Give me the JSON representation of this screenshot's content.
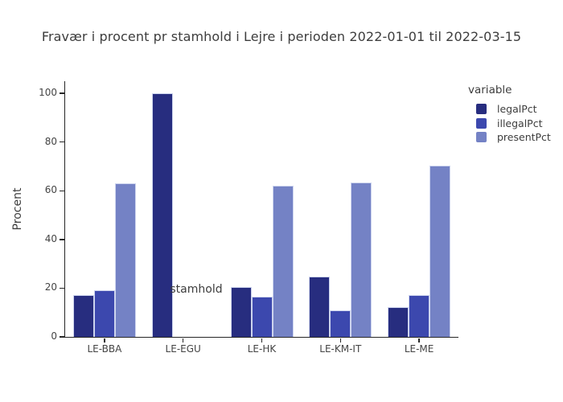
{
  "title": "Fravær i procent pr stamhold i Lejre i perioden 2022-01-01 til 2022-03-15",
  "chart_data": {
    "type": "bar",
    "categories": [
      "LE-BBA",
      "LE-EGU",
      "LE-HK",
      "LE-KM-IT",
      "LE-ME"
    ],
    "series": [
      {
        "name": "legalPct",
        "color": "#272d7f",
        "values": [
          17.3,
          100,
          20.6,
          24.8,
          12.1
        ]
      },
      {
        "name": "illegalPct",
        "color": "#3c48ae",
        "values": [
          19.0,
          0,
          16.5,
          11.0,
          17.1
        ]
      },
      {
        "name": "presentPct",
        "color": "#7482c5",
        "values": [
          63.1,
          0,
          62.0,
          63.3,
          70.2
        ]
      }
    ],
    "xlabel": "stamhold",
    "ylabel": "Procent",
    "yticks": [
      0,
      20,
      40,
      60,
      80,
      100
    ],
    "ylim": [
      0,
      105
    ],
    "grid": false,
    "legend_title": "variable",
    "legend_position": "top-right",
    "colors": {
      "axis": "#262626",
      "text": "#3d3d3d",
      "bar_border": "#cdd4ee",
      "background": "#ffffff"
    }
  }
}
